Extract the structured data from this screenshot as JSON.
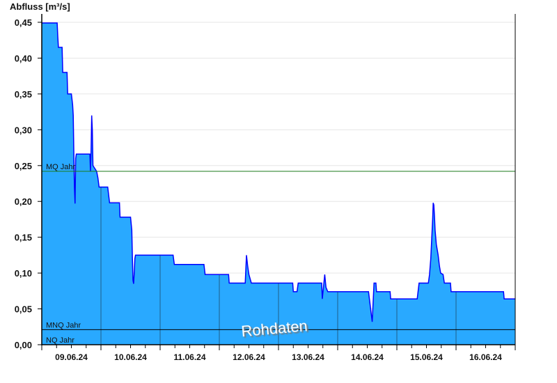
{
  "chart_data": {
    "type": "area",
    "title": "",
    "ylabel": "Abfluss [m³/s]",
    "xlabel": "",
    "ylim": [
      0,
      0.45
    ],
    "xlim": [
      "2024-06-09T00:00",
      "2024-06-17T00:00"
    ],
    "yticks": [
      "0,00",
      "0,05",
      "0,10",
      "0,15",
      "0,20",
      "0,25",
      "0,30",
      "0,35",
      "0,40",
      "0,45"
    ],
    "xticks": [
      "09.06.24",
      "10.06.24",
      "11.06.24",
      "12.06.24",
      "13.06.24",
      "14.06.24",
      "15.06.24",
      "16.06.24"
    ],
    "grid": true,
    "fill_color": "#29a9ff",
    "line_color": "#0000ff",
    "watermark": "Rohdaten",
    "reference_lines": [
      {
        "label": "MQ Jahr",
        "value": 0.242,
        "color": "#1a7a1a"
      },
      {
        "label": "MNQ Jahr",
        "value": 0.021,
        "color": "#000000"
      },
      {
        "label": "NQ Jahr",
        "value": 0.0,
        "color": "#000000"
      }
    ],
    "series": [
      {
        "x": [
          "2024-06-09T00:00",
          "2024-06-09T06:15",
          "2024-06-09T06:30",
          "2024-06-09T06:45",
          "2024-06-09T08:15",
          "2024-06-09T08:30",
          "2024-06-09T10:15",
          "2024-06-09T10:30",
          "2024-06-09T12:00",
          "2024-06-09T12:30",
          "2024-06-09T12:45",
          "2024-06-09T13:00",
          "2024-06-09T13:15",
          "2024-06-09T13:30",
          "2024-06-09T13:45",
          "2024-06-09T14:00",
          "2024-06-09T19:30",
          "2024-06-09T19:45",
          "2024-06-09T20:00",
          "2024-06-09T20:15",
          "2024-06-09T20:30",
          "2024-06-09T20:45",
          "2024-06-09T22:15",
          "2024-06-09T22:45",
          "2024-06-09T23:15",
          "2024-06-10T02:45",
          "2024-06-10T03:30",
          "2024-06-10T07:30",
          "2024-06-10T07:45",
          "2024-06-10T12:00",
          "2024-06-10T12:30",
          "2024-06-10T12:45",
          "2024-06-10T13:00",
          "2024-06-10T13:15",
          "2024-06-10T13:30",
          "2024-06-10T13:45",
          "2024-06-10T14:00",
          "2024-06-11T05:15",
          "2024-06-11T05:45",
          "2024-06-11T17:45",
          "2024-06-11T18:15",
          "2024-06-12T03:45",
          "2024-06-12T04:00",
          "2024-06-12T10:30",
          "2024-06-12T11:00",
          "2024-06-12T11:30",
          "2024-06-12T12:00",
          "2024-06-12T13:00",
          "2024-06-13T05:45",
          "2024-06-13T06:00",
          "2024-06-13T07:30",
          "2024-06-13T08:00",
          "2024-06-13T17:30",
          "2024-06-13T17:45",
          "2024-06-13T18:45",
          "2024-06-13T19:15",
          "2024-06-13T20:00",
          "2024-06-14T12:30",
          "2024-06-14T14:00",
          "2024-06-14T14:45",
          "2024-06-14T15:30",
          "2024-06-14T15:45",
          "2024-06-14T21:15",
          "2024-06-14T21:30",
          "2024-06-15T08:15",
          "2024-06-15T09:00",
          "2024-06-15T12:45",
          "2024-06-15T13:15",
          "2024-06-15T13:45",
          "2024-06-15T14:30",
          "2024-06-15T14:45",
          "2024-06-15T15:00",
          "2024-06-15T15:15",
          "2024-06-15T15:30",
          "2024-06-15T16:00",
          "2024-06-15T16:45",
          "2024-06-15T17:15",
          "2024-06-15T17:45",
          "2024-06-15T18:45",
          "2024-06-15T19:15",
          "2024-06-15T21:45",
          "2024-06-15T22:00",
          "2024-06-16T19:15",
          "2024-06-16T19:30",
          "2024-06-17T00:00"
        ],
        "y": [
          0.449,
          0.449,
          0.43,
          0.415,
          0.415,
          0.38,
          0.38,
          0.35,
          0.35,
          0.335,
          0.32,
          0.27,
          0.22,
          0.197,
          0.26,
          0.266,
          0.266,
          0.242,
          0.27,
          0.32,
          0.3,
          0.25,
          0.242,
          0.233,
          0.22,
          0.22,
          0.198,
          0.198,
          0.178,
          0.178,
          0.16,
          0.12,
          0.09,
          0.085,
          0.1,
          0.12,
          0.125,
          0.125,
          0.112,
          0.112,
          0.098,
          0.098,
          0.086,
          0.086,
          0.125,
          0.11,
          0.098,
          0.086,
          0.086,
          0.074,
          0.074,
          0.086,
          0.086,
          0.064,
          0.098,
          0.08,
          0.074,
          0.074,
          0.032,
          0.086,
          0.086,
          0.074,
          0.074,
          0.064,
          0.064,
          0.086,
          0.086,
          0.098,
          0.12,
          0.175,
          0.198,
          0.195,
          0.18,
          0.16,
          0.14,
          0.125,
          0.11,
          0.1,
          0.098,
          0.086,
          0.086,
          0.074,
          0.074,
          0.064,
          0.064
        ]
      }
    ]
  }
}
